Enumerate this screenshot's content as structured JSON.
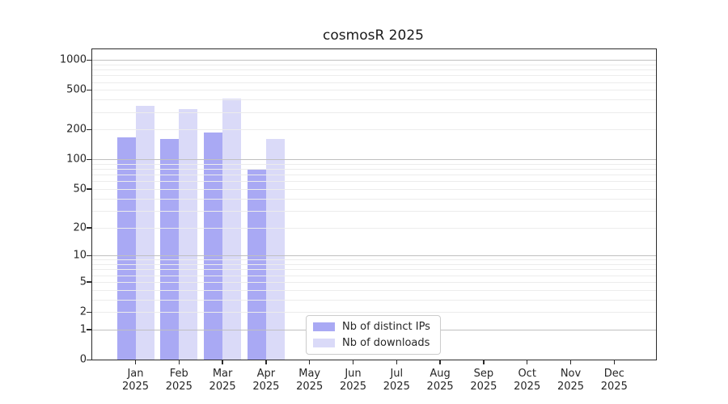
{
  "title": "cosmosR 2025",
  "chart_data": {
    "type": "bar",
    "title": "cosmosR 2025",
    "y_scale": "log10(1+x)",
    "grid": "horizontal, log minor + major lines",
    "legend_position": "bottom-center-inside",
    "categories": [
      "Jan",
      "Feb",
      "Mar",
      "Apr",
      "May",
      "Jun",
      "Jul",
      "Aug",
      "Sep",
      "Oct",
      "Nov",
      "Dec"
    ],
    "year_label": "2025",
    "y_ticks": [
      0,
      1,
      2,
      5,
      10,
      20,
      50,
      100,
      200,
      500,
      1000
    ],
    "ylim": [
      0,
      1280
    ],
    "series": [
      {
        "name": "Nb of distinct IPs",
        "color": "#a9a9f4",
        "values": [
          168,
          160,
          186,
          80,
          null,
          null,
          null,
          null,
          null,
          null,
          null,
          null
        ]
      },
      {
        "name": "Nb of downloads",
        "color": "#dadaf8",
        "values": [
          345,
          322,
          412,
          161,
          null,
          null,
          null,
          null,
          null,
          null,
          null,
          null
        ]
      }
    ]
  },
  "colors": {
    "major_grid": "#c0c0c0",
    "minor_grid": "#ececec",
    "axis": "#2b2b2b",
    "text": "#262626"
  }
}
